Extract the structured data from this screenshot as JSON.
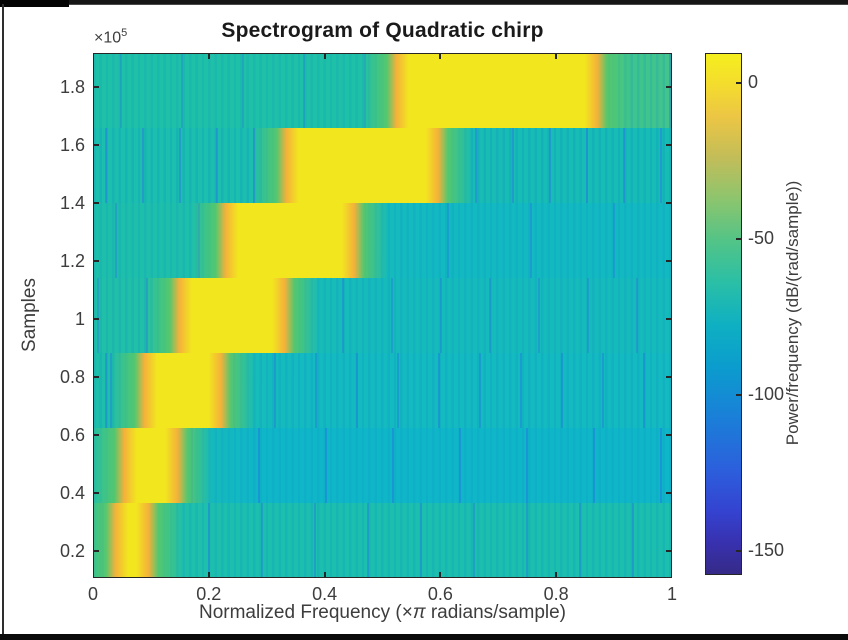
{
  "window_frame": {
    "top_bar_color": "#161616",
    "top_bar_accent_color": "#030303",
    "left_border_color": "#2e2e2e",
    "bottom_bar_color": "#0b0b0b"
  },
  "chart_data": {
    "type": "heatmap",
    "title": "Spectrogram of Quadratic chirp",
    "xlabel": "Normalized Frequency (×π radians/sample)",
    "xlabel_parts": {
      "prefix": "Normalized Frequency (×",
      "pi": "π",
      "suffix": " radians/sample)"
    },
    "ylabel": "Samples",
    "y_axis_multiplier": {
      "base": "×10",
      "exponent": "5"
    },
    "xlim": [
      0,
      1
    ],
    "ylim_samples_1e5": [
      0.107,
      1.917
    ],
    "grid": false,
    "x_ticks": {
      "values": [
        0,
        0.2,
        0.4,
        0.6,
        0.8,
        1
      ],
      "labels": [
        "0",
        "0.2",
        "0.4",
        "0.6",
        "0.8",
        "1"
      ]
    },
    "y_ticks": {
      "values": [
        0.2,
        0.4,
        0.6,
        0.8,
        1.0,
        1.2,
        1.4,
        1.6,
        1.8
      ],
      "labels": [
        "0.2",
        "0.4",
        "0.6",
        "0.8",
        "1",
        "1.2",
        "1.4",
        "1.6",
        "1.8"
      ],
      "units": "samples × 1e5"
    },
    "palette": {
      "yellow": "#f2e71f",
      "orange": "#f4b13a",
      "green_rgb": "88,200,106",
      "tick_text": "#3d3d3d",
      "title_text": "#1a1a1a",
      "axes_box": "#262626"
    },
    "bands": [
      {
        "samples_1e5": [
          0.107,
          0.366
        ],
        "peak_freq": [
          0.035,
          0.1
        ],
        "base_left": "#23c0a6",
        "base_right": "#1cbfad",
        "stripe": "rgba(10,146,198,0.20)",
        "stripe_period": 6.4,
        "accent": "rgba(34,118,226,0.42)",
        "accent_period": 53,
        "accent_offset": 9
      },
      {
        "samples_1e5": [
          0.366,
          0.624
        ],
        "peak_freq": [
          0.05,
          0.15
        ],
        "base_left": "#1fbfa9",
        "base_right": "#0fb6c7",
        "stripe": "rgba(8,140,202,0.15)",
        "stripe_period": 6.4,
        "accent": "rgba(40,110,230,0.45)",
        "accent_period": 67,
        "accent_offset": 31
      },
      {
        "samples_1e5": [
          0.624,
          0.883
        ],
        "peak_freq": [
          0.085,
          0.225
        ],
        "base_left": "#1dbfab",
        "base_right": "#13bac0",
        "stripe": "rgba(10,145,200,0.22)",
        "stripe_period": 6.4,
        "accent": "rgba(36,112,228,0.40)",
        "accent_period": 41,
        "accent_offset": 17
      },
      {
        "samples_1e5": [
          0.883,
          1.141
        ],
        "peak_freq": [
          0.145,
          0.335
        ],
        "base_left": "#20c0a8",
        "base_right": "#15bbbb",
        "stripe": "rgba(12,148,198,0.22)",
        "stripe_period": 6.4,
        "accent": "rgba(38,115,226,0.38)",
        "accent_period": 49,
        "accent_offset": 4
      },
      {
        "samples_1e5": [
          1.141,
          1.4
        ],
        "peak_freq": [
          0.225,
          0.455
        ],
        "base_left": "#1ebfaa",
        "base_right": "#12b9c1",
        "stripe": "rgba(8,142,202,0.18)",
        "stripe_period": 6.4,
        "accent": "rgba(40,110,230,0.36)",
        "accent_period": 83,
        "accent_offset": 22
      },
      {
        "samples_1e5": [
          1.4,
          1.659
        ],
        "peak_freq": [
          0.33,
          0.6
        ],
        "base_left": "#1cbead",
        "base_right": "#17bcb4",
        "stripe": "rgba(9,144,201,0.24)",
        "stripe_period": 6.4,
        "accent": "rgba(44,116,232,0.46)",
        "accent_period": 37,
        "accent_offset": 12
      },
      {
        "samples_1e5": [
          1.659,
          1.917
        ],
        "peak_freq": [
          0.52,
          0.875
        ],
        "base_left": "#1fc0a8",
        "base_right": "#43c48b",
        "stripe": "rgba(12,150,190,0.20)",
        "stripe_period": 6.4,
        "accent": "rgba(34,120,220,0.32)",
        "accent_period": 61,
        "accent_offset": 27
      }
    ],
    "colorbar": {
      "label": "Power/frequency (dB/(rad/sample))",
      "ticks": {
        "values": [
          0,
          -50,
          -100,
          -150
        ],
        "labels": [
          "0",
          "-50",
          "-100",
          "-150"
        ]
      },
      "limits_db": [
        -157.5,
        9.3
      ],
      "colormap": "parula",
      "gradient_stops": [
        [
          0.0,
          "#352a87"
        ],
        [
          0.06,
          "#3831af"
        ],
        [
          0.12,
          "#3443d0"
        ],
        [
          0.2,
          "#2c5fdc"
        ],
        [
          0.3,
          "#1a7fd8"
        ],
        [
          0.4,
          "#0b9dcd"
        ],
        [
          0.48,
          "#0fb0c2"
        ],
        [
          0.56,
          "#2abfa6"
        ],
        [
          0.64,
          "#52c487"
        ],
        [
          0.72,
          "#8cc56e"
        ],
        [
          0.8,
          "#c2bd59"
        ],
        [
          0.88,
          "#ecc644"
        ],
        [
          0.94,
          "#f4dc2e"
        ],
        [
          1.0,
          "#f5ef1e"
        ]
      ]
    }
  }
}
